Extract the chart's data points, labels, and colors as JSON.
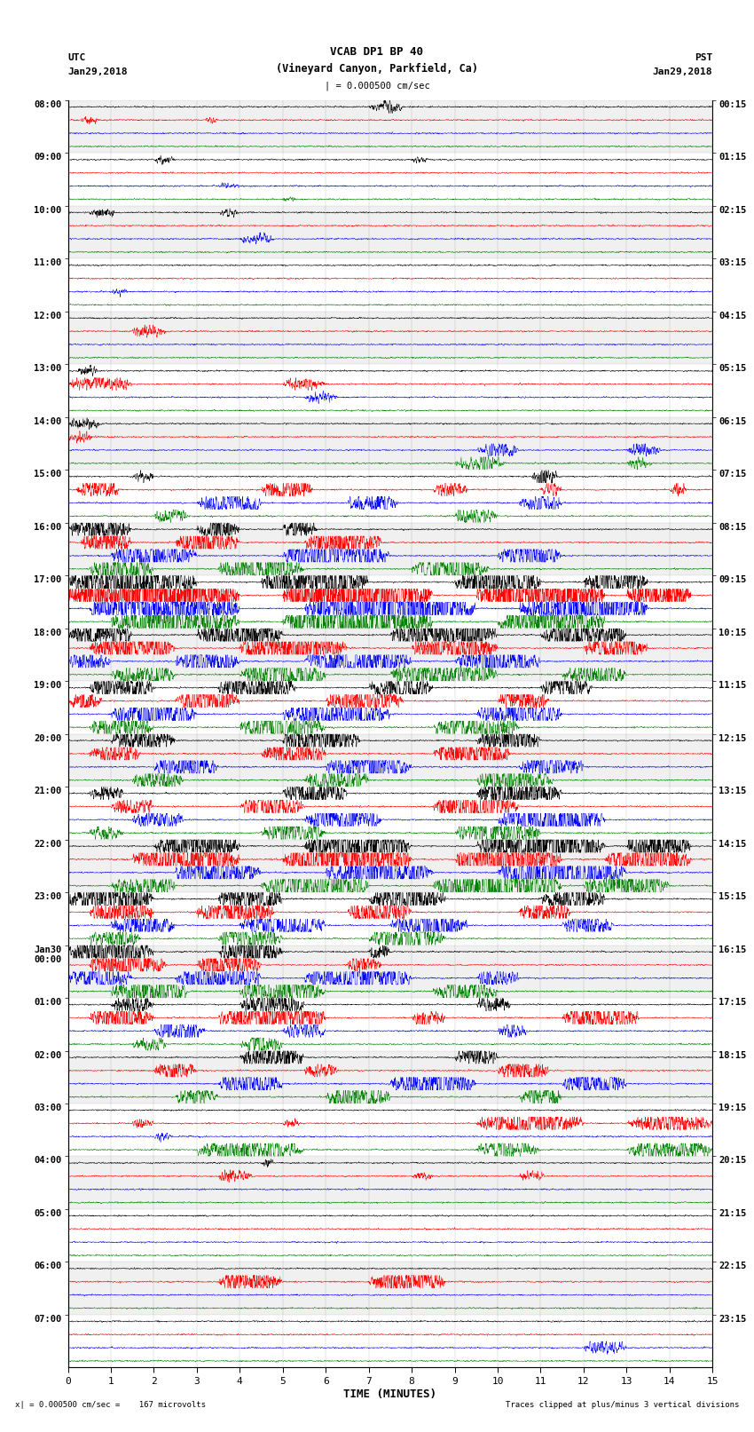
{
  "title_line1": "VCAB DP1 BP 40",
  "title_line2": "(Vineyard Canyon, Parkfield, Ca)",
  "scale_label": "| = 0.000500 cm/sec",
  "left_label_top": "UTC",
  "left_label_date": "Jan29,2018",
  "right_label_top": "PST",
  "right_label_date": "Jan29,2018",
  "xlabel": "TIME (MINUTES)",
  "bottom_left": "x| = 0.000500 cm/sec =    167 microvolts",
  "bottom_right": "Traces clipped at plus/minus 3 vertical divisions",
  "utc_times": [
    "08:00",
    "09:00",
    "10:00",
    "11:00",
    "12:00",
    "13:00",
    "14:00",
    "15:00",
    "16:00",
    "17:00",
    "18:00",
    "19:00",
    "20:00",
    "21:00",
    "22:00",
    "23:00",
    "Jan30\n00:00",
    "01:00",
    "02:00",
    "03:00",
    "04:00",
    "05:00",
    "06:00",
    "07:00"
  ],
  "pst_times": [
    "00:15",
    "01:15",
    "02:15",
    "03:15",
    "04:15",
    "05:15",
    "06:15",
    "07:15",
    "08:15",
    "09:15",
    "10:15",
    "11:15",
    "12:15",
    "13:15",
    "14:15",
    "15:15",
    "16:15",
    "17:15",
    "18:15",
    "19:15",
    "20:15",
    "21:15",
    "22:15",
    "23:15"
  ],
  "trace_colors": [
    "black",
    "red",
    "blue",
    "green"
  ],
  "num_groups": 24,
  "traces_per_group": 4,
  "xmin": 0,
  "xmax": 15,
  "bg_color": "white",
  "fig_width": 8.5,
  "fig_height": 16.13,
  "dpi": 100,
  "row_bg_colors": [
    "#f0f0f0",
    "white"
  ]
}
